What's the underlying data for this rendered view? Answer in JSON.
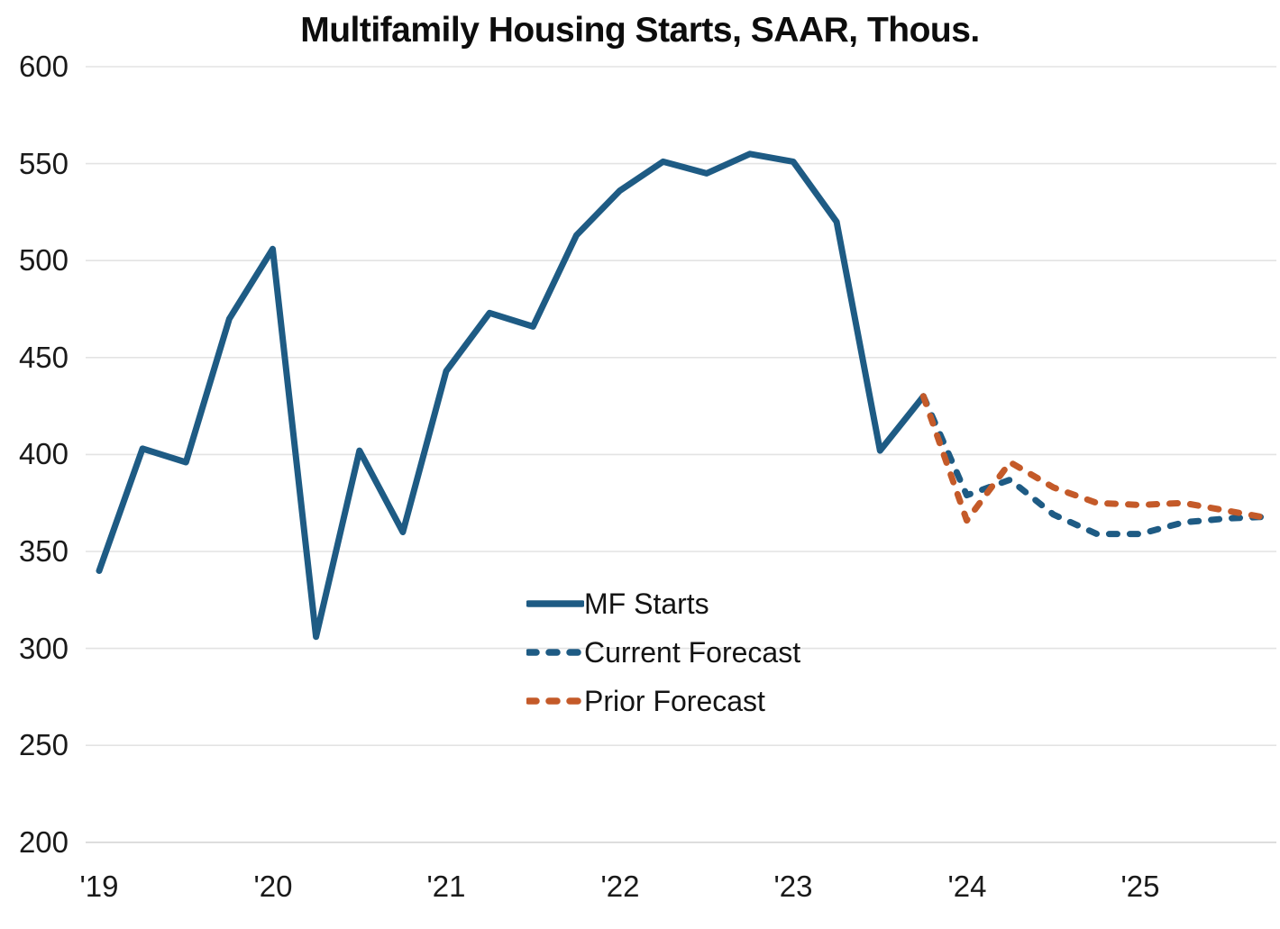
{
  "title": "Multifamily Housing Starts, SAAR, Thous.",
  "legend": {
    "items": [
      {
        "label": "MF Starts",
        "color": "#1e5b84",
        "dash": false
      },
      {
        "label": "Current Forecast",
        "color": "#1e5b84",
        "dash": true
      },
      {
        "label": "Prior Forecast",
        "color": "#c45a29",
        "dash": true
      }
    ]
  },
  "axes": {
    "y_ticks": [
      600,
      550,
      500,
      450,
      400,
      350,
      300,
      250,
      200
    ],
    "x_ticks": [
      "'19",
      "'20",
      "'21",
      "'22",
      "'23",
      "'24",
      "'25"
    ]
  },
  "colors": {
    "blue": "#1e5b84",
    "orange": "#c45a29",
    "grid": "#e3e3e3",
    "axis_bottom": "#d5d5d5",
    "text": "#1a1a1a"
  },
  "chart_data": {
    "type": "line",
    "title": "Multifamily Housing Starts, SAAR, Thous.",
    "x_unit": "quarter",
    "categories": [
      "2019Q1",
      "2019Q2",
      "2019Q3",
      "2019Q4",
      "2020Q1",
      "2020Q2",
      "2020Q3",
      "2020Q4",
      "2021Q1",
      "2021Q2",
      "2021Q3",
      "2021Q4",
      "2022Q1",
      "2022Q2",
      "2022Q3",
      "2022Q4",
      "2023Q1",
      "2023Q2",
      "2023Q3",
      "2023Q4",
      "2024Q1",
      "2024Q2",
      "2024Q3",
      "2024Q4",
      "2025Q1",
      "2025Q2",
      "2025Q3",
      "2025Q4"
    ],
    "ylim": [
      200,
      600
    ],
    "grid": "horizontal",
    "legend_position": "inside-lower-middle",
    "series": [
      {
        "name": "MF Starts",
        "style": "solid",
        "color": "#1e5b84",
        "values": [
          340,
          403,
          396,
          470,
          506,
          306,
          402,
          360,
          443,
          473,
          466,
          513,
          536,
          551,
          545,
          555,
          551,
          520,
          402,
          430,
          null,
          null,
          null,
          null,
          null,
          null,
          null,
          null
        ]
      },
      {
        "name": "Current Forecast",
        "style": "dashed",
        "color": "#1e5b84",
        "values": [
          null,
          null,
          null,
          null,
          null,
          null,
          null,
          null,
          null,
          null,
          null,
          null,
          null,
          null,
          null,
          null,
          null,
          null,
          null,
          430,
          379,
          387,
          369,
          359,
          359,
          365,
          367,
          368
        ]
      },
      {
        "name": "Prior Forecast",
        "style": "dashed",
        "color": "#c45a29",
        "values": [
          null,
          null,
          null,
          null,
          null,
          null,
          null,
          null,
          null,
          null,
          null,
          null,
          null,
          null,
          null,
          null,
          null,
          null,
          null,
          430,
          366,
          396,
          383,
          375,
          374,
          375,
          371,
          367
        ]
      }
    ]
  }
}
